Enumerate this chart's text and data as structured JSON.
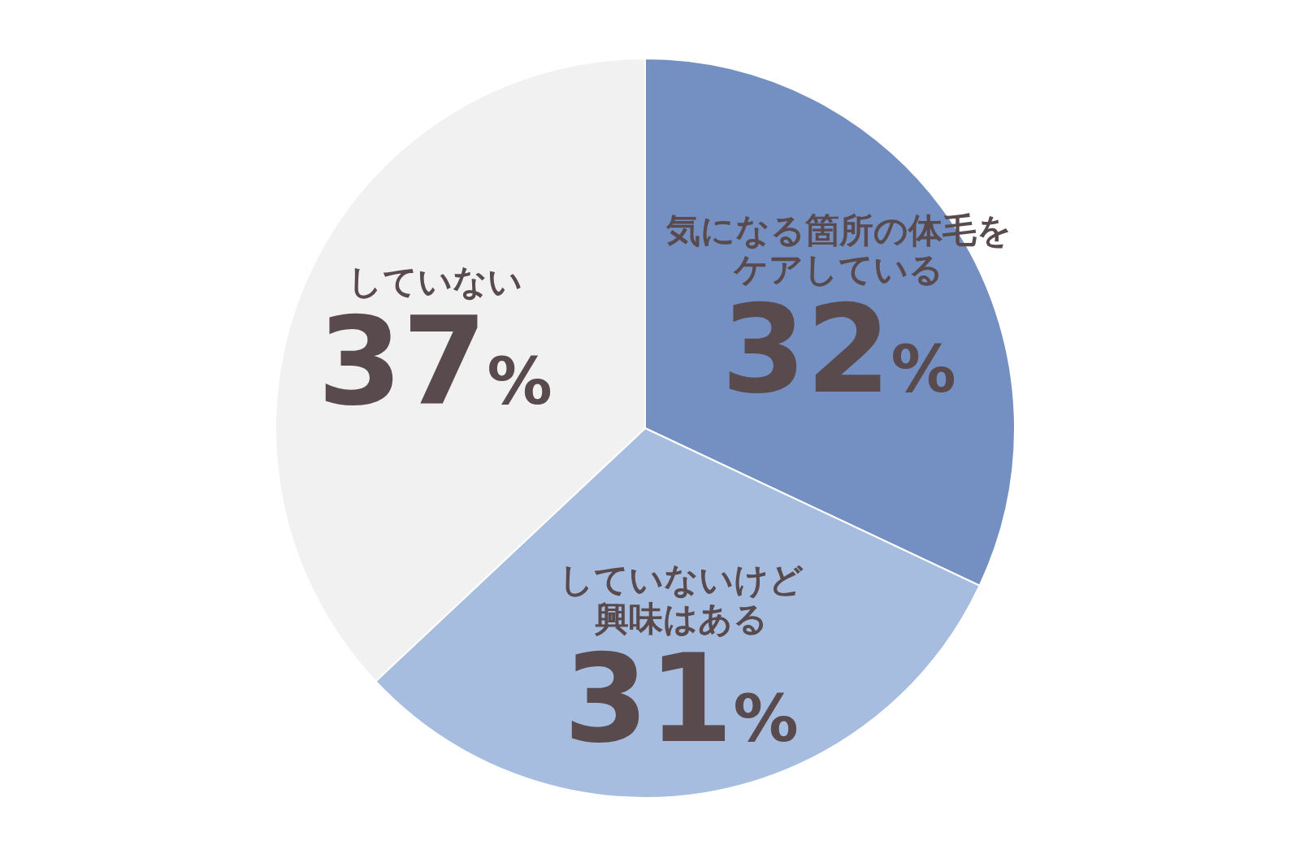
{
  "chart_data": {
    "type": "pie",
    "categories": [
      "気になる箇所の体毛をケアしている",
      "していないけど興味はある",
      "していない"
    ],
    "values": [
      32,
      31,
      37
    ],
    "colors": [
      "#748fc1",
      "#a7bde0",
      "#f1f1f1"
    ],
    "value_labels": [
      "32%",
      "31%",
      "37%"
    ]
  }
}
